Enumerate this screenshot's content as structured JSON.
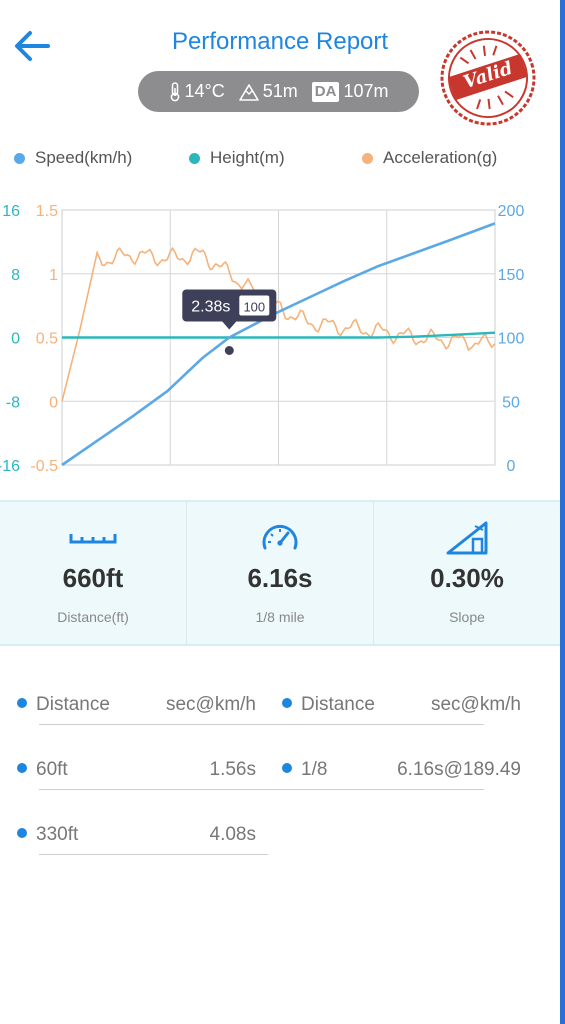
{
  "header": {
    "title": "Performance Report",
    "temperature": "14°C",
    "altitude": "51m",
    "density_altitude_label": "DA",
    "density_altitude": "107m",
    "stamp_text": "Valid"
  },
  "legend": [
    {
      "label": "Speed(km/h)",
      "color": "#5aa9e6"
    },
    {
      "label": "Height(m)",
      "color": "#2ab8bd"
    },
    {
      "label": "Acceleration(g)",
      "color": "#f5b27a"
    }
  ],
  "chart_data": {
    "type": "line",
    "x": [
      0,
      0.5,
      1,
      1.5,
      2,
      2.38,
      3,
      3.5,
      4,
      4.5,
      5,
      5.5,
      6.16
    ],
    "x_range": [
      0,
      6.16
    ],
    "left_axis_height_ticks": [
      "16",
      "8",
      "0",
      "-8",
      "-16"
    ],
    "left_axis_accel_ticks": [
      "1.5",
      "1",
      "0.5",
      "0",
      "-0.5"
    ],
    "right_axis_speed_ticks": [
      "200",
      "150",
      "100",
      "50",
      "0"
    ],
    "series": [
      {
        "name": "Speed(km/h)",
        "axis": "right",
        "ylim": [
          0,
          200
        ],
        "color": "#5aa9e6",
        "values": [
          0,
          19,
          38,
          58,
          84,
          100,
          118,
          131,
          144,
          156,
          166,
          176,
          189.49
        ]
      },
      {
        "name": "Height(m)",
        "axis": "left-height",
        "ylim": [
          -16,
          16
        ],
        "color": "#2ab8bd",
        "values": [
          0,
          0,
          0,
          0,
          0,
          0,
          0,
          0,
          0,
          0,
          0.1,
          0.3,
          0.6
        ]
      },
      {
        "name": "Acceleration(g)",
        "axis": "left-accel",
        "ylim": [
          -0.5,
          1.5
        ],
        "color": "#f5b27a",
        "values": [
          0,
          1.1,
          1.15,
          1.12,
          1.15,
          1.0,
          0.75,
          0.62,
          0.58,
          0.55,
          0.5,
          0.48,
          0.45
        ]
      }
    ],
    "tooltip": {
      "time": "2.38s",
      "value": "100"
    }
  },
  "stats": [
    {
      "icon": "ruler-icon",
      "value": "660ft",
      "label": "Distance(ft)"
    },
    {
      "icon": "speedometer-icon",
      "value": "6.16s",
      "label": "1/8 mile"
    },
    {
      "icon": "slope-icon",
      "value": "0.30%",
      "label": "Slope"
    }
  ],
  "results": {
    "left": [
      {
        "label": "Distance",
        "value": "sec@km/h"
      },
      {
        "label": "60ft",
        "value": "1.56s"
      },
      {
        "label": "330ft",
        "value": "4.08s"
      }
    ],
    "right": [
      {
        "label": "Distance",
        "value": "sec@km/h"
      },
      {
        "label": "1/8",
        "value": "6.16s@189.49"
      }
    ]
  },
  "colors": {
    "accent": "#1f86e0",
    "speed": "#5aa9e6",
    "height": "#2ab8bd",
    "accel": "#f5b27a",
    "stamp": "#c8372d"
  }
}
